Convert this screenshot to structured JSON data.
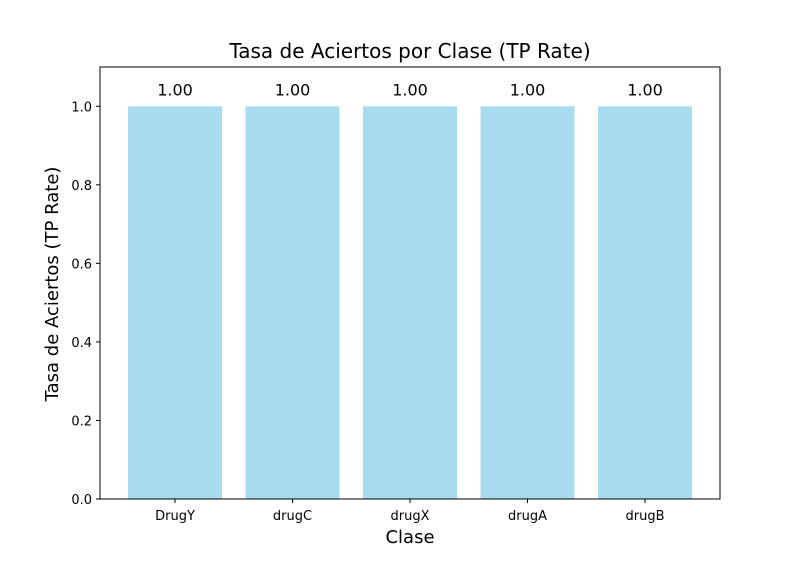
{
  "chart_data": {
    "type": "bar",
    "title": "Tasa de Aciertos por Clase (TP Rate)",
    "xlabel": "Clase",
    "ylabel": "Tasa de Aciertos (TP Rate)",
    "categories": [
      "DrugY",
      "drugC",
      "drugX",
      "drugA",
      "drugB"
    ],
    "values": [
      1.0,
      1.0,
      1.0,
      1.0,
      1.0
    ],
    "data_labels": [
      "1.00",
      "1.00",
      "1.00",
      "1.00",
      "1.00"
    ],
    "ylim": [
      0,
      1.1
    ],
    "yticks": [
      0.0,
      0.2,
      0.4,
      0.6,
      0.8,
      1.0
    ],
    "ytick_labels": [
      "0.0",
      "0.2",
      "0.4",
      "0.6",
      "0.8",
      "1.0"
    ],
    "grid": false,
    "bar_color": "#a8dbee"
  }
}
